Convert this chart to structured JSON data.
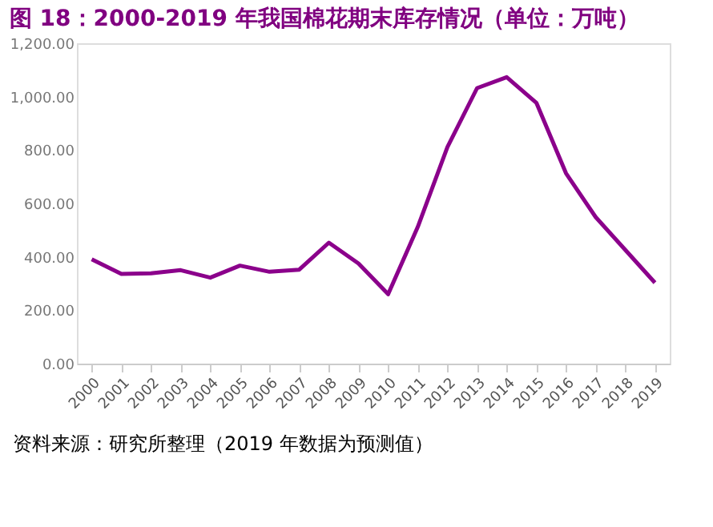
{
  "chart_data": {
    "type": "line",
    "title": "图 18：2000-2019 年我国棉花期末库存情况（单位：万吨）",
    "categories": [
      "2000",
      "2001",
      "2002",
      "2003",
      "2004",
      "2005",
      "2006",
      "2007",
      "2008",
      "2009",
      "2010",
      "2011",
      "2012",
      "2013",
      "2014",
      "2015",
      "2016",
      "2017",
      "2018",
      "2019"
    ],
    "series": [
      {
        "color": "#8b008b",
        "values": [
          391,
          336,
          338,
          350,
          322,
          367,
          344,
          352,
          453,
          375,
          260,
          512,
          811,
          1032,
          1073,
          977,
          713,
          549,
          426,
          303
        ]
      }
    ],
    "ylim": [
      0,
      1200
    ],
    "yticks": [
      {
        "value": 0,
        "label": "0.00"
      },
      {
        "value": 200,
        "label": "200.00"
      },
      {
        "value": 400,
        "label": "400.00"
      },
      {
        "value": 600,
        "label": "600.00"
      },
      {
        "value": 800,
        "label": "800.00"
      },
      {
        "value": 1000,
        "label": "1,000.00"
      },
      {
        "value": 1200,
        "label": "1,200.00"
      }
    ],
    "grid": false,
    "marker": "none",
    "line_style": "solid",
    "annotations": [
      "资料来源：研究所整理（2019 年数据为预测值）"
    ]
  }
}
